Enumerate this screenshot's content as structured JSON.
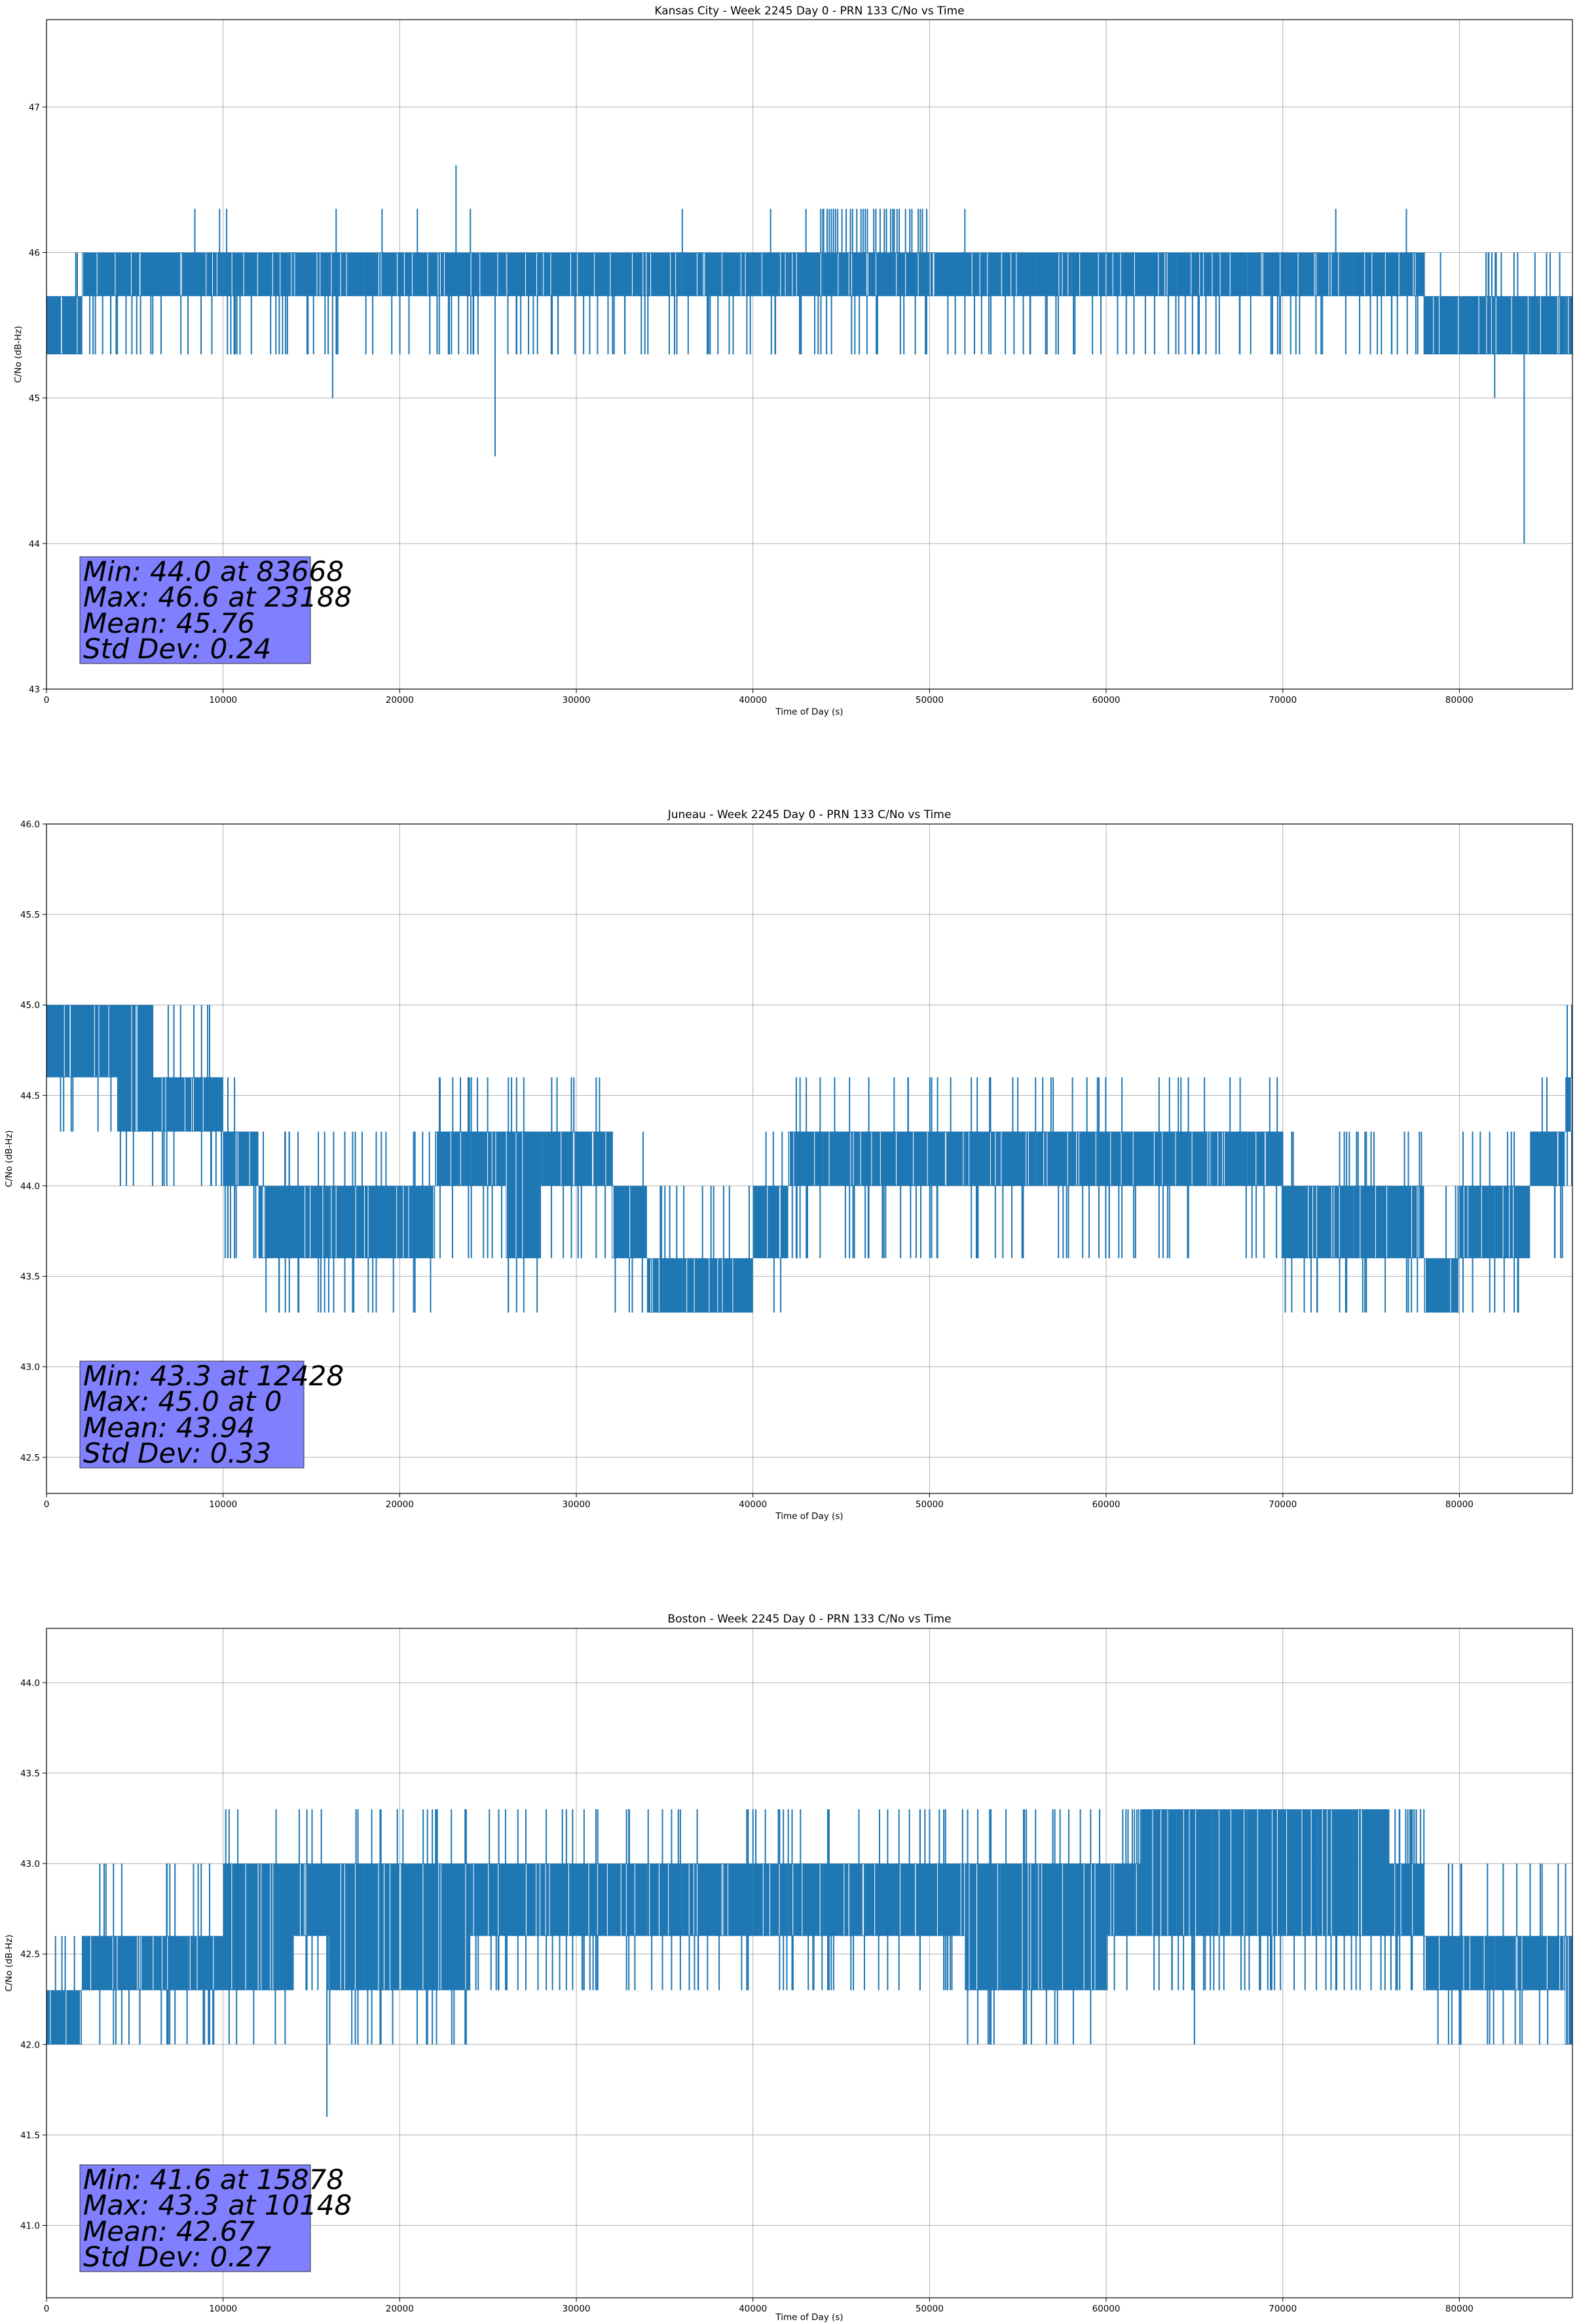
{
  "chart_data": [
    {
      "type": "line",
      "title": "Kansas City - Week 2245 Day 0 - PRN 133 C/No vs Time",
      "xlabel": "Time of Day (s)",
      "ylabel": "C/No (dB-Hz)",
      "xlim": [
        0,
        86400
      ],
      "ylim": [
        43,
        47.6
      ],
      "xticks": [
        0,
        10000,
        20000,
        30000,
        40000,
        50000,
        60000,
        70000,
        80000
      ],
      "yticks": [
        43,
        44,
        45,
        46,
        47
      ],
      "ytick_labels": [
        "43",
        "44",
        "45",
        "46",
        "47"
      ],
      "grid": true,
      "color": "#1f77b4",
      "series": [
        {
          "x_start": 0,
          "x_step": 2000,
          "levels": [
            45.3,
            45.7,
            46.0
          ],
          "band": [
            [
              0,
              1
            ],
            [
              1,
              2
            ],
            [
              1,
              2
            ],
            [
              1,
              2
            ],
            [
              1,
              2
            ],
            [
              1,
              2
            ],
            [
              1,
              2
            ],
            [
              1,
              2
            ],
            [
              1,
              2
            ],
            [
              1,
              2
            ],
            [
              1,
              2
            ],
            [
              1,
              2
            ],
            [
              1,
              2
            ],
            [
              1,
              2
            ],
            [
              1,
              2
            ],
            [
              1,
              2
            ],
            [
              1,
              2
            ],
            [
              1,
              2
            ],
            [
              1,
              2
            ],
            [
              1,
              2
            ],
            [
              1,
              2
            ],
            [
              1,
              2
            ],
            [
              1,
              2
            ],
            [
              1,
              2
            ],
            [
              1,
              2
            ],
            [
              1,
              2
            ],
            [
              1,
              2
            ],
            [
              1,
              2
            ],
            [
              1,
              2
            ],
            [
              1,
              2
            ],
            [
              1,
              2
            ],
            [
              1,
              2
            ],
            [
              1,
              2
            ],
            [
              1,
              2
            ],
            [
              1,
              2
            ],
            [
              1,
              2
            ],
            [
              1,
              2
            ],
            [
              1,
              2
            ],
            [
              1,
              2
            ],
            [
              0,
              1
            ],
            [
              0,
              1
            ],
            [
              0,
              1
            ],
            [
              0,
              1
            ],
            [
              0,
              1
            ]
          ],
          "spikes": [
            [
              8400,
              46.3
            ],
            [
              9800,
              46.3
            ],
            [
              10200,
              46.3
            ],
            [
              16200,
              45.0
            ],
            [
              16400,
              46.3
            ],
            [
              19000,
              46.3
            ],
            [
              21000,
              46.3
            ],
            [
              23188,
              46.6
            ],
            [
              24000,
              46.3
            ],
            [
              25400,
              44.6
            ],
            [
              36000,
              46.3
            ],
            [
              41000,
              46.3
            ],
            [
              44000,
              46.3
            ],
            [
              48000,
              46.3
            ],
            [
              52000,
              46.3
            ],
            [
              73000,
              46.3
            ],
            [
              77000,
              46.3
            ],
            [
              82000,
              45.0
            ],
            [
              83668,
              44.0
            ]
          ],
          "dense_top": [
            [
              43000,
              50000,
              46.3
            ]
          ]
        }
      ],
      "stats": [
        "Min: 44.0 at 83668",
        "Max: 46.6 at 23188",
        "Mean: 45.76",
        "Std Dev: 0.24"
      ]
    },
    {
      "type": "line",
      "title": "Juneau - Week 2245 Day 0 - PRN 133 C/No vs Time",
      "xlabel": "Time of Day (s)",
      "ylabel": "C/No (dB-Hz)",
      "xlim": [
        0,
        86400
      ],
      "ylim": [
        42.3,
        46.0
      ],
      "xticks": [
        0,
        10000,
        20000,
        30000,
        40000,
        50000,
        60000,
        70000,
        80000
      ],
      "yticks": [
        42.5,
        43.0,
        43.5,
        44.0,
        44.5,
        45.0,
        45.5,
        46.0
      ],
      "ytick_labels": [
        "42.5",
        "43.0",
        "43.5",
        "44.0",
        "44.5",
        "45.0",
        "45.5",
        "46.0"
      ],
      "grid": true,
      "color": "#1f77b4",
      "series": [
        {
          "x_start": 0,
          "x_step": 2000,
          "levels": [
            43.3,
            43.6,
            44.0,
            44.3,
            44.6,
            45.0
          ],
          "band": [
            [
              4,
              5
            ],
            [
              4,
              5
            ],
            [
              3,
              5
            ],
            [
              3,
              4
            ],
            [
              3,
              4
            ],
            [
              2,
              3
            ],
            [
              1,
              2
            ],
            [
              1,
              2
            ],
            [
              1,
              2
            ],
            [
              1,
              2
            ],
            [
              1,
              2
            ],
            [
              2,
              3
            ],
            [
              2,
              3
            ],
            [
              1,
              3
            ],
            [
              2,
              3
            ],
            [
              2,
              3
            ],
            [
              1,
              2
            ],
            [
              0,
              1
            ],
            [
              0,
              1
            ],
            [
              0,
              1
            ],
            [
              1,
              2
            ],
            [
              2,
              3
            ],
            [
              2,
              3
            ],
            [
              2,
              3
            ],
            [
              2,
              3
            ],
            [
              2,
              3
            ],
            [
              2,
              3
            ],
            [
              2,
              3
            ],
            [
              2,
              3
            ],
            [
              2,
              3
            ],
            [
              2,
              3
            ],
            [
              2,
              3
            ],
            [
              2,
              3
            ],
            [
              2,
              3
            ],
            [
              2,
              3
            ],
            [
              1,
              2
            ],
            [
              1,
              2
            ],
            [
              1,
              2
            ],
            [
              1,
              2
            ],
            [
              0,
              1
            ],
            [
              1,
              2
            ],
            [
              1,
              2
            ],
            [
              2,
              3
            ],
            [
              3,
              4
            ]
          ],
          "spikes": [
            [
              8800,
              44.6
            ],
            [
              12428,
              43.3
            ],
            [
              24400,
              44.6
            ],
            [
              33000,
              43.3
            ],
            [
              38000,
              43.3
            ],
            [
              56000,
              44.6
            ],
            [
              57000,
              44.6
            ],
            [
              75000,
              44.3
            ],
            [
              78000,
              43.3
            ],
            [
              82000,
              43.3
            ]
          ],
          "dense_top": [
            [
              0,
              5000,
              45.0
            ]
          ]
        }
      ],
      "stats": [
        "Min: 43.3 at 12428",
        "Max: 45.0 at 0",
        "Mean: 43.94",
        "Std Dev: 0.33"
      ]
    },
    {
      "type": "line",
      "title": "Boston - Week 2245 Day 0 - PRN 133 C/No vs Time",
      "xlabel": "Time of Day (s)",
      "ylabel": "C/No (dB-Hz)",
      "xlim": [
        0,
        86400
      ],
      "ylim": [
        40.6,
        44.3
      ],
      "xticks": [
        0,
        10000,
        20000,
        30000,
        40000,
        50000,
        60000,
        70000,
        80000
      ],
      "yticks": [
        41.0,
        41.5,
        42.0,
        42.5,
        43.0,
        43.5,
        44.0
      ],
      "ytick_labels": [
        "41.0",
        "41.5",
        "42.0",
        "42.5",
        "43.0",
        "43.5",
        "44.0"
      ],
      "grid": true,
      "color": "#1f77b4",
      "series": [
        {
          "x_start": 0,
          "x_step": 2000,
          "levels": [
            42.0,
            42.3,
            42.6,
            43.0,
            43.3
          ],
          "band": [
            [
              0,
              1
            ],
            [
              1,
              2
            ],
            [
              1,
              2
            ],
            [
              1,
              2
            ],
            [
              1,
              2
            ],
            [
              1,
              3
            ],
            [
              1,
              3
            ],
            [
              2,
              3
            ],
            [
              1,
              3
            ],
            [
              1,
              3
            ],
            [
              1,
              3
            ],
            [
              1,
              3
            ],
            [
              2,
              3
            ],
            [
              2,
              3
            ],
            [
              2,
              3
            ],
            [
              2,
              3
            ],
            [
              2,
              3
            ],
            [
              2,
              3
            ],
            [
              2,
              3
            ],
            [
              2,
              3
            ],
            [
              2,
              3
            ],
            [
              2,
              3
            ],
            [
              2,
              3
            ],
            [
              2,
              3
            ],
            [
              2,
              3
            ],
            [
              2,
              3
            ],
            [
              1,
              3
            ],
            [
              1,
              3
            ],
            [
              1,
              3
            ],
            [
              1,
              3
            ],
            [
              2,
              3
            ],
            [
              2,
              4
            ],
            [
              2,
              4
            ],
            [
              2,
              4
            ],
            [
              2,
              4
            ],
            [
              2,
              4
            ],
            [
              2,
              4
            ],
            [
              2,
              4
            ],
            [
              2,
              3
            ],
            [
              1,
              2
            ],
            [
              1,
              2
            ],
            [
              1,
              2
            ],
            [
              1,
              2
            ],
            [
              0,
              2
            ]
          ],
          "spikes": [
            [
              10148,
              43.3
            ],
            [
              13000,
              43.3
            ],
            [
              15878,
              41.6
            ],
            [
              33000,
              43.3
            ],
            [
              40000,
              43.3
            ],
            [
              42000,
              43.3
            ],
            [
              46000,
              43.3
            ],
            [
              50000,
              43.3
            ],
            [
              56000,
              43.3
            ],
            [
              65000,
              42.0
            ],
            [
              80000,
              42.0
            ],
            [
              85000,
              42.0
            ]
          ],
          "dense_top": [
            [
              61000,
              78000,
              43.3
            ]
          ]
        }
      ],
      "stats": [
        "Min: 41.6 at 15878",
        "Max: 43.3 at 10148",
        "Mean: 42.67",
        "Std Dev: 0.27"
      ]
    }
  ]
}
